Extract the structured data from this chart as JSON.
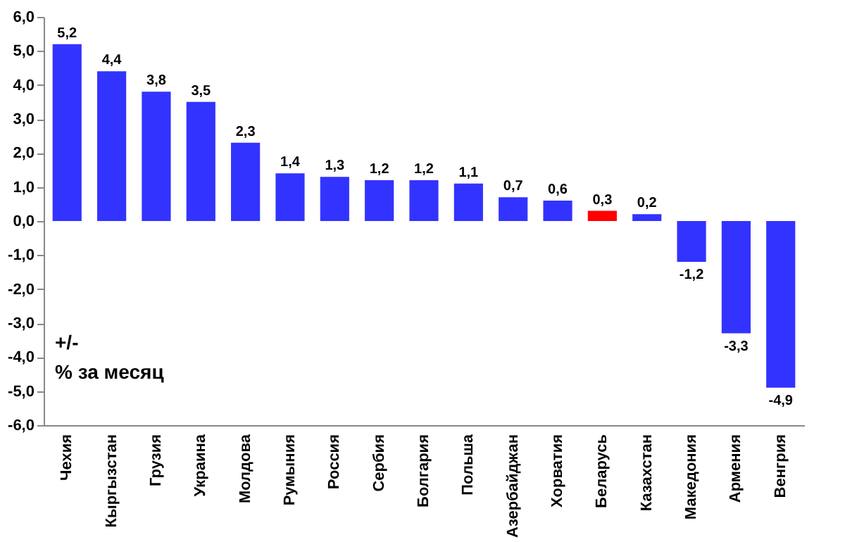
{
  "chart_data": {
    "type": "bar",
    "categories": [
      "Чехия",
      "Кыргызстан",
      "Грузия",
      "Украина",
      "Молдова",
      "Румыния",
      "Россия",
      "Сербия",
      "Болгария",
      "Польша",
      "Азербайджан",
      "Хорватия",
      "Беларусь",
      "Казахстан",
      "Македония",
      "Армения",
      "Венгрия"
    ],
    "values": [
      5.2,
      4.4,
      3.8,
      3.5,
      2.3,
      1.4,
      1.3,
      1.2,
      1.2,
      1.1,
      0.7,
      0.6,
      0.3,
      0.2,
      -1.2,
      -3.3,
      -4.9
    ],
    "colors": [
      "#3333ff",
      "#3333ff",
      "#3333ff",
      "#3333ff",
      "#3333ff",
      "#3333ff",
      "#3333ff",
      "#3333ff",
      "#3333ff",
      "#3333ff",
      "#3333ff",
      "#3333ff",
      "#ff0000",
      "#3333ff",
      "#3333ff",
      "#3333ff",
      "#3333ff"
    ],
    "value_labels": [
      "5,2",
      "4,4",
      "3,8",
      "3,5",
      "2,3",
      "1,4",
      "1,3",
      "1,2",
      "1,2",
      "1,1",
      "0,7",
      "0,6",
      "0,3",
      "0,2",
      "-1,2",
      "-3,3",
      "-4,9"
    ],
    "ylim": [
      -6,
      6
    ],
    "yticks": [
      {
        "value": -6,
        "label": "-6,0"
      },
      {
        "value": -5,
        "label": "-5,0"
      },
      {
        "value": -4,
        "label": "-4,0"
      },
      {
        "value": -3,
        "label": "-3,0"
      },
      {
        "value": -2,
        "label": "-2,0"
      },
      {
        "value": -1,
        "label": "-1,0"
      },
      {
        "value": 0,
        "label": "0,0"
      },
      {
        "value": 1,
        "label": "1,0"
      },
      {
        "value": 2,
        "label": "2,0"
      },
      {
        "value": 3,
        "label": "3,0"
      },
      {
        "value": 4,
        "label": "4,0"
      },
      {
        "value": 5,
        "label": "5,0"
      },
      {
        "value": 6,
        "label": "6,0"
      }
    ],
    "annotations": [
      "+/-",
      "% за месяц"
    ]
  }
}
